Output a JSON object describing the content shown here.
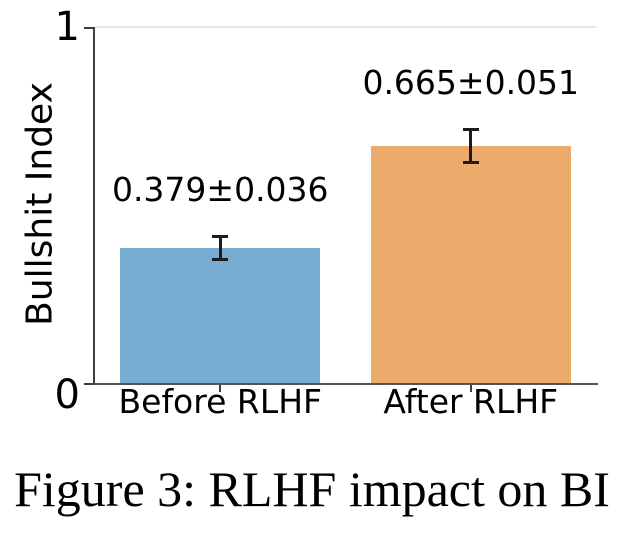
{
  "figure": {
    "caption": "Figure 3: RLHF impact on BI"
  },
  "chart_data": {
    "type": "bar",
    "title": "",
    "categories": [
      "Before RLHF",
      "After RLHF"
    ],
    "values": [
      0.379,
      0.665
    ],
    "errors": [
      0.036,
      0.051
    ],
    "bar_labels": [
      "0.379±0.036",
      "0.665±0.051"
    ],
    "bar_colors": [
      "#79acd1",
      "#ecaa6b"
    ],
    "error_bar_color": "#1c1c1c",
    "xlabel": "",
    "ylabel": "Bullshit Index",
    "ylim": [
      0,
      1
    ],
    "yticks": [
      {
        "value": 0,
        "label": "0"
      },
      {
        "value": 1,
        "label": "1"
      }
    ],
    "gridlines_y": [
      1
    ],
    "legend": "none"
  }
}
